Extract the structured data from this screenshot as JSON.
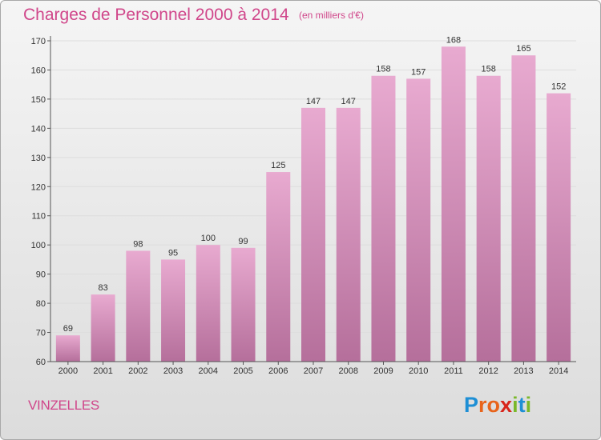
{
  "header": {
    "title": "Charges de Personnel 2000 à 2014",
    "subtitle": "(en milliers d'€)"
  },
  "footer": {
    "place": "VINZELLES",
    "logo_letters": [
      "P",
      "r",
      "o",
      "x",
      "i",
      "t",
      "i"
    ],
    "logo_colors": [
      "#1e8fd5",
      "#e8641b",
      "#e8641b",
      "#d8251b",
      "#7ab829",
      "#1e8fd5",
      "#7ab829"
    ]
  },
  "colors": {
    "bar_top": "#e8aad0",
    "bar_bottom": "#b56f9b",
    "grid": "#dddddd",
    "axis": "#555555",
    "title": "#d0468a"
  },
  "chart_data": {
    "type": "bar",
    "title": "Charges de Personnel 2000 à 2014",
    "subtitle": "(en milliers d'€)",
    "xlabel": "",
    "ylabel": "",
    "ylim": [
      60,
      170
    ],
    "yticks": [
      60,
      70,
      80,
      90,
      100,
      110,
      120,
      130,
      140,
      150,
      160,
      170
    ],
    "grid": true,
    "categories": [
      "2000",
      "2001",
      "2002",
      "2003",
      "2004",
      "2005",
      "2006",
      "2007",
      "2008",
      "2009",
      "2010",
      "2011",
      "2012",
      "2013",
      "2014"
    ],
    "values": [
      69,
      83,
      98,
      95,
      100,
      99,
      125,
      147,
      147,
      158,
      157,
      168,
      158,
      165,
      152
    ]
  }
}
